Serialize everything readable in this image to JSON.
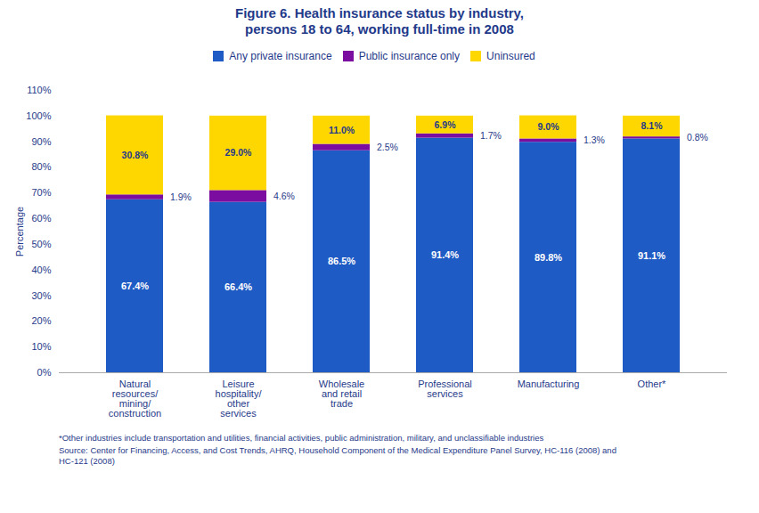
{
  "chart_data": {
    "type": "bar",
    "stacked": true,
    "title": "Figure 6.  Health insurance status by industry,\npersons 18 to 64, working full-time in 2008",
    "categories": [
      "Natural\nresources/\nmining/\nconstruction",
      "Leisure\nhospitality/\nother\nservices",
      "Wholesale\nand retail\ntrade",
      "Professional\nservices",
      "Manufacturing",
      "Other*"
    ],
    "series": [
      {
        "name": "Any private insurance",
        "color": "#1F5BC4",
        "values": [
          67.4,
          66.4,
          86.5,
          91.4,
          89.8,
          91.1
        ],
        "value_labels": [
          "67.4%",
          "66.4%",
          "86.5%",
          "91.4%",
          "89.8%",
          "91.1%"
        ]
      },
      {
        "name": "Public insurance only",
        "color": "#7B0EA0",
        "values": [
          1.9,
          4.6,
          2.5,
          1.7,
          1.3,
          0.8
        ],
        "value_labels": [
          "1.9%",
          "4.6%",
          "2.5%",
          "1.7%",
          "1.3%",
          "0.8%"
        ]
      },
      {
        "name": "Uninsured",
        "color": "#FFD700",
        "values": [
          30.8,
          29.0,
          11.0,
          6.9,
          9.0,
          8.1
        ],
        "value_labels": [
          "30.8%",
          "29.0%",
          "11.0%",
          "6.9%",
          "9.0%",
          "8.1%"
        ]
      }
    ],
    "ylabel": "Percentage",
    "ylim": [
      0,
      110
    ],
    "yticks": [
      {
        "value": 0,
        "label": "0%"
      },
      {
        "value": 10,
        "label": "10%"
      },
      {
        "value": 20,
        "label": "20%"
      },
      {
        "value": 30,
        "label": "30%"
      },
      {
        "value": 40,
        "label": "40%"
      },
      {
        "value": 50,
        "label": "50%"
      },
      {
        "value": 60,
        "label": "60%"
      },
      {
        "value": 70,
        "label": "70%"
      },
      {
        "value": 80,
        "label": "80%"
      },
      {
        "value": 90,
        "label": "90%"
      },
      {
        "value": 100,
        "label": "100%"
      },
      {
        "value": 110,
        "label": "110%"
      }
    ],
    "grid": false,
    "legend": "top",
    "data_labels": true,
    "annotations": [
      "*Other industries include transportation and utilities, financial activities, public administration, military, and unclassifiable industries",
      "Source: Center for Financing, Access, and Cost Trends, AHRQ, Household Component of the Medical Expenditure Panel Survey, HC-116 (2008) and\nHC-121 (2008)"
    ]
  }
}
